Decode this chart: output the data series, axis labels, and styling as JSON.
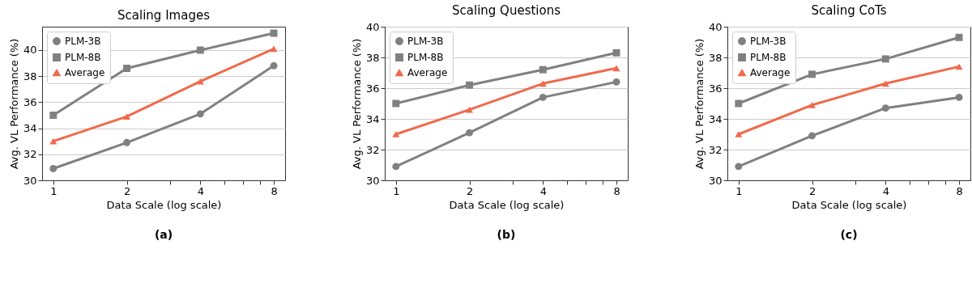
{
  "chart_data": [
    {
      "type": "line",
      "title": "Scaling Images",
      "xlabel": "Data Scale (log scale)",
      "ylabel": "Avg. VL Performance (%)",
      "log": "x",
      "x": [
        1,
        2,
        4,
        8
      ],
      "xlim": [
        0.9,
        8.9
      ],
      "xticks": [
        1,
        2,
        {
          "value": 3,
          "label": null
        },
        4,
        {
          "value": 5,
          "label": null
        },
        {
          "value": 6,
          "label": null
        },
        {
          "value": 7,
          "label": null
        },
        8
      ],
      "ylim": [
        30,
        41.8
      ],
      "yticks": [
        30,
        32,
        34,
        36,
        38,
        40
      ],
      "grid": "y",
      "legend": "top left",
      "line_style": "solid",
      "annotations": [
        "(a)"
      ],
      "series": [
        {
          "name": "PLM-3B",
          "color": "#808080",
          "marker": "circle",
          "values": [
            30.9,
            32.9,
            35.1,
            38.8
          ]
        },
        {
          "name": "PLM-8B",
          "color": "#808080",
          "marker": "square",
          "values": [
            35.0,
            38.6,
            40.0,
            41.3
          ]
        },
        {
          "name": "Average",
          "color": "#ef6a4c",
          "marker": "triangle",
          "values": [
            33.0,
            34.9,
            37.6,
            40.1
          ]
        }
      ]
    },
    {
      "type": "line",
      "title": "Scaling Questions",
      "xlabel": "Data Scale (log scale)",
      "ylabel": "Avg. VL Performance (%)",
      "log": "x",
      "x": [
        1,
        2,
        4,
        8
      ],
      "xlim": [
        0.9,
        8.9
      ],
      "xticks": [
        1,
        2,
        {
          "value": 3,
          "label": null
        },
        4,
        {
          "value": 5,
          "label": null
        },
        {
          "value": 6,
          "label": null
        },
        {
          "value": 7,
          "label": null
        },
        8
      ],
      "ylim": [
        30,
        40
      ],
      "yticks": [
        30,
        32,
        34,
        36,
        38,
        40
      ],
      "grid": "y",
      "legend": "top left",
      "line_style": "solid",
      "annotations": [
        "(b)"
      ],
      "series": [
        {
          "name": "PLM-3B",
          "color": "#808080",
          "marker": "circle",
          "values": [
            30.9,
            33.1,
            35.4,
            36.4
          ]
        },
        {
          "name": "PLM-8B",
          "color": "#808080",
          "marker": "square",
          "values": [
            35.0,
            36.2,
            37.2,
            38.3
          ]
        },
        {
          "name": "Average",
          "color": "#ef6a4c",
          "marker": "triangle",
          "values": [
            33.0,
            34.6,
            36.3,
            37.3
          ]
        }
      ]
    },
    {
      "type": "line",
      "title": "Scaling CoTs",
      "xlabel": "Data Scale (log scale)",
      "ylabel": "Avg. VL Performance (%)",
      "log": "x",
      "x": [
        1,
        2,
        4,
        8
      ],
      "xlim": [
        0.9,
        8.9
      ],
      "xticks": [
        1,
        2,
        {
          "value": 3,
          "label": null
        },
        4,
        {
          "value": 5,
          "label": null
        },
        {
          "value": 6,
          "label": null
        },
        {
          "value": 7,
          "label": null
        },
        8
      ],
      "ylim": [
        30,
        40
      ],
      "yticks": [
        30,
        32,
        34,
        36,
        38,
        40
      ],
      "grid": "y",
      "legend": "top left",
      "line_style": "solid",
      "annotations": [
        "(c)"
      ],
      "series": [
        {
          "name": "PLM-3B",
          "color": "#808080",
          "marker": "circle",
          "values": [
            30.9,
            32.9,
            34.7,
            35.4
          ]
        },
        {
          "name": "PLM-8B",
          "color": "#808080",
          "marker": "square",
          "values": [
            35.0,
            36.9,
            37.9,
            39.3
          ]
        },
        {
          "name": "Average",
          "color": "#ef6a4c",
          "marker": "triangle",
          "values": [
            33.0,
            34.9,
            36.3,
            37.4
          ]
        }
      ]
    }
  ]
}
